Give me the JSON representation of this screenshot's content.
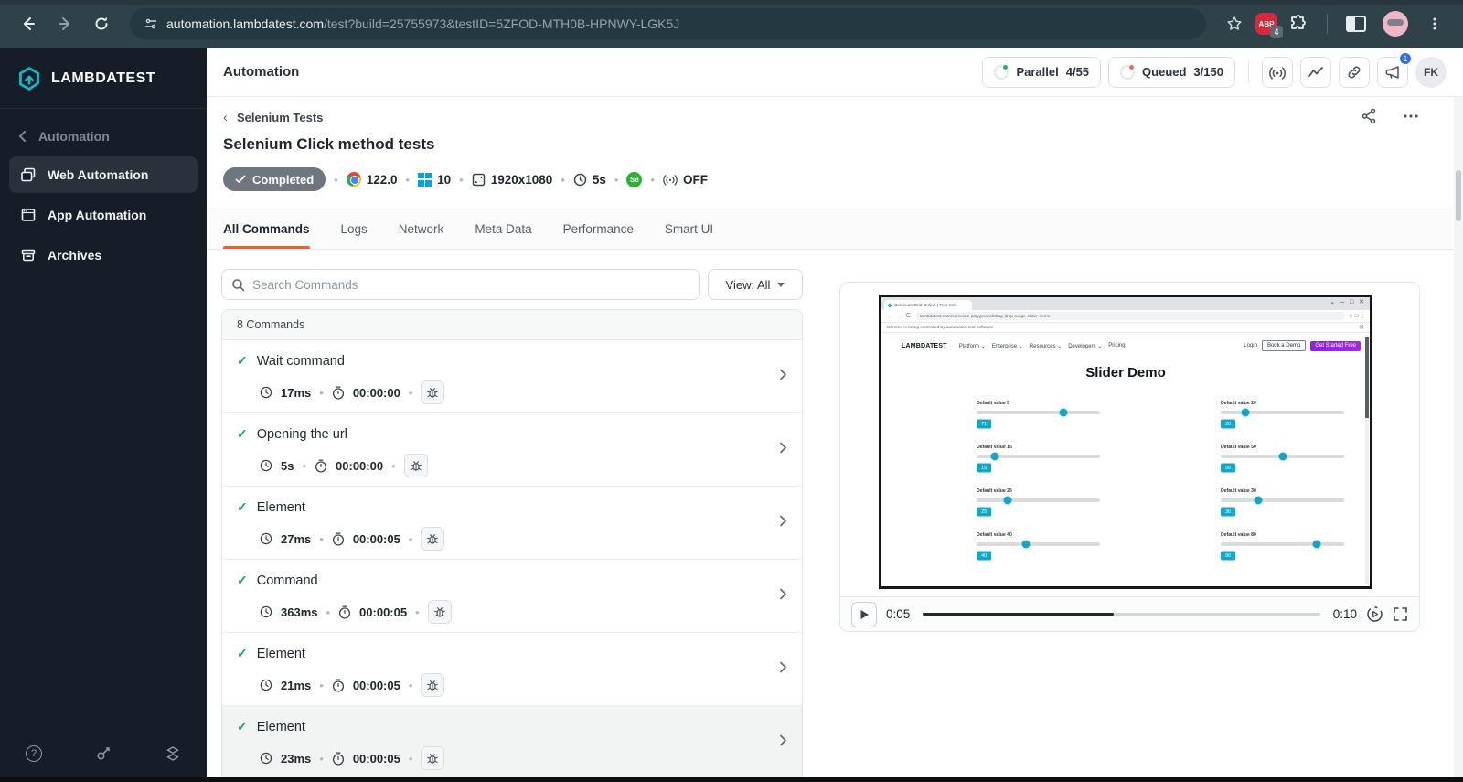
{
  "browser": {
    "url_domain": "automation.lambdatest.com",
    "url_path": "/test?build=25755973&testID=5ZFOD-MTH0B-HPNWY-LGK5J",
    "adblock_label": "ABP",
    "adblock_badge": "4"
  },
  "sidebar": {
    "logo": "LAMBDATEST",
    "section": "Automation",
    "items": [
      {
        "label": "Web Automation"
      },
      {
        "label": "App Automation"
      },
      {
        "label": "Archives"
      }
    ]
  },
  "header": {
    "title": "Automation",
    "parallel_label": "Parallel",
    "parallel_value": "4/55",
    "queued_label": "Queued",
    "queued_value": "3/150",
    "notification_badge": "1",
    "avatar_initials": "FK"
  },
  "test": {
    "breadcrumb": "Selenium Tests",
    "title": "Selenium Click method tests",
    "status": "Completed",
    "browser_version": "122.0",
    "os_version": "10",
    "resolution": "1920x1080",
    "duration": "5s",
    "selenium_label": "Se",
    "listening_state": "OFF"
  },
  "tabs": [
    {
      "label": "All Commands"
    },
    {
      "label": "Logs"
    },
    {
      "label": "Network"
    },
    {
      "label": "Meta Data"
    },
    {
      "label": "Performance"
    },
    {
      "label": "Smart UI"
    }
  ],
  "toolbar": {
    "search_placeholder": "Search Commands",
    "view_label": "View: All"
  },
  "commands": {
    "count_label": "8 Commands",
    "rows": [
      {
        "title": "Wait command",
        "duration": "17ms",
        "timestamp": "00:00:00"
      },
      {
        "title": "Opening the url",
        "duration": "5s",
        "timestamp": "00:00:00"
      },
      {
        "title": "Element",
        "duration": "27ms",
        "timestamp": "00:00:05"
      },
      {
        "title": "Command",
        "duration": "363ms",
        "timestamp": "00:00:05"
      },
      {
        "title": "Element",
        "duration": "21ms",
        "timestamp": "00:00:05"
      },
      {
        "title": "Element",
        "duration": "23ms",
        "timestamp": "00:00:05"
      }
    ]
  },
  "video": {
    "current_time": "0:05",
    "total_time": "0:10",
    "progress_percent": 48,
    "mock": {
      "tab_title": "Selenium Grid Online | Run Sel...",
      "url": "lambdatest.com/selenium-playground/drag-drop-range-slider-demo",
      "automation_notice": "Chrome is being controlled by automated test software",
      "logo": "LAMBDATEST",
      "nav_links": [
        "Platform",
        "Enterprise",
        "Resources",
        "Developers",
        "Pricing"
      ],
      "login_label": "Login",
      "book_demo_label": "Book a Demo",
      "get_started_label": "Get Started Free",
      "heading": "Slider Demo",
      "sliders": [
        {
          "label": "Default value 5",
          "value": "71",
          "percent": 70
        },
        {
          "label": "Default value 20",
          "value": "20",
          "percent": 20
        },
        {
          "label": "Default value 15",
          "value": "15",
          "percent": 15
        },
        {
          "label": "Default value 50",
          "value": "50",
          "percent": 50
        },
        {
          "label": "Default value 25",
          "value": "25",
          "percent": 25
        },
        {
          "label": "Default value 30",
          "value": "30",
          "percent": 30
        },
        {
          "label": "Default value 40",
          "value": "40",
          "percent": 40
        },
        {
          "label": "Default value 80",
          "value": "80",
          "percent": 78
        }
      ]
    }
  },
  "colors": {
    "accent_orange": "#ed5f2e",
    "brand_teal": "#0ebac5",
    "success_green": "#1fa355",
    "slider_cyan": "#14a6c6",
    "cta_purple": "#8926d6"
  }
}
